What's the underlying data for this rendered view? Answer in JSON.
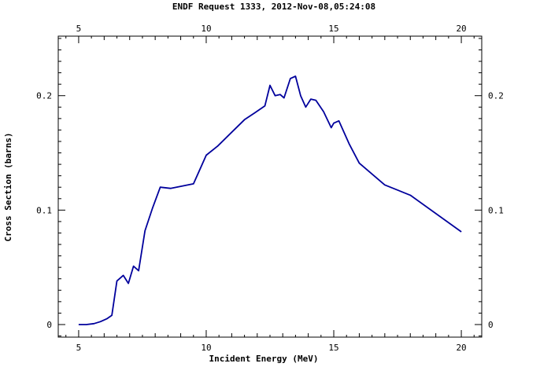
{
  "chart_data": {
    "type": "line",
    "title": "ENDF Request 1333, 2012-Nov-08,05:24:08",
    "xlabel": "Incident Energy (MeV)",
    "ylabel": "Cross Section (barns)",
    "xlim": [
      4.2,
      20.8
    ],
    "ylim": [
      -0.011,
      0.252
    ],
    "x_ticks": [
      5,
      10,
      15,
      20
    ],
    "y_ticks": [
      0,
      0.1,
      0.2
    ],
    "x_tick_labels": [
      "5",
      "10",
      "15",
      "20"
    ],
    "y_tick_labels": [
      "0",
      "0.1",
      "0.2"
    ],
    "grid": false,
    "line_color": "#00009c",
    "series": [
      {
        "x": [
          5.0,
          5.3,
          5.6,
          5.85,
          6.1,
          6.3,
          6.5,
          6.75,
          6.95,
          7.15,
          7.35,
          7.6,
          7.9,
          8.2,
          8.6,
          9.5,
          10.0,
          10.45,
          10.95,
          11.5,
          11.9,
          12.3,
          12.5,
          12.7,
          12.9,
          13.05,
          13.3,
          13.5,
          13.7,
          13.9,
          14.1,
          14.3,
          14.6,
          14.9,
          15.0,
          15.2,
          15.6,
          16.0,
          17.0,
          18.0,
          20.0
        ],
        "y": [
          0.0,
          0.0,
          0.0008,
          0.0025,
          0.005,
          0.008,
          0.038,
          0.043,
          0.036,
          0.051,
          0.047,
          0.082,
          0.102,
          0.12,
          0.119,
          0.123,
          0.148,
          0.156,
          0.167,
          0.179,
          0.185,
          0.191,
          0.209,
          0.2,
          0.201,
          0.198,
          0.215,
          0.217,
          0.2,
          0.19,
          0.197,
          0.196,
          0.186,
          0.172,
          0.176,
          0.178,
          0.158,
          0.141,
          0.122,
          0.113,
          0.081
        ]
      }
    ]
  }
}
